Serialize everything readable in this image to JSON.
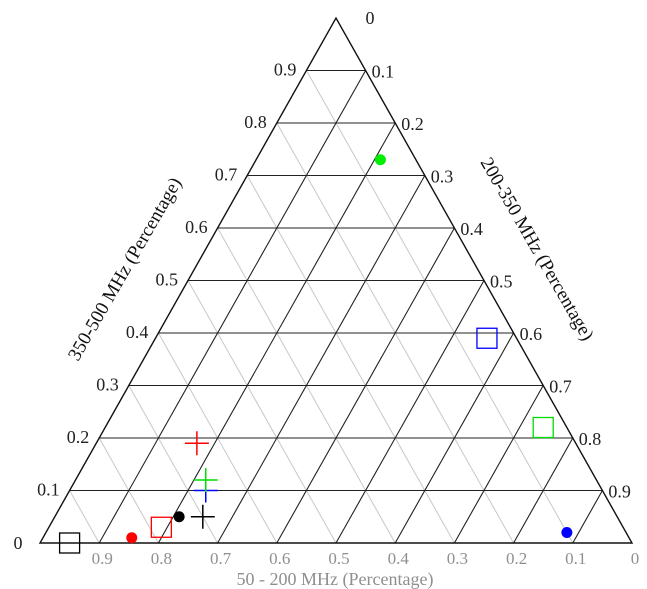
{
  "chart_data": {
    "type": "scatter",
    "subtype": "ternary",
    "axes": {
      "bottom": {
        "label": "50 - 200 MHz (Percentage)",
        "ticks": [
          "0.9",
          "0.8",
          "0.7",
          "0.6",
          "0.5",
          "0.4",
          "0.3",
          "0.2",
          "0.1",
          "0"
        ],
        "start_label": "0"
      },
      "left": {
        "label": "350-500 MHz (Percentage)",
        "ticks": [
          "0.1",
          "0.2",
          "0.3",
          "0.4",
          "0.5",
          "0.6",
          "0.7",
          "0.8",
          "0.9"
        ],
        "apex_label": "0"
      },
      "right": {
        "label": "200-350 MHz (Percentage)",
        "ticks": [
          "0.1",
          "0.2",
          "0.3",
          "0.4",
          "0.5",
          "0.6",
          "0.7",
          "0.8",
          "0.9"
        ]
      }
    },
    "grid": true,
    "points": [
      {
        "c350_500": 0.0,
        "c200_350": 0.05,
        "marker": "square",
        "color": "#000000"
      },
      {
        "c350_500": 0.01,
        "c200_350": 0.15,
        "marker": "circle",
        "color": "#ff0000"
      },
      {
        "c350_500": 0.03,
        "c200_350": 0.19,
        "marker": "square",
        "color": "#ff0000"
      },
      {
        "c350_500": 0.05,
        "c200_350": 0.21,
        "marker": "circle",
        "color": "#000000"
      },
      {
        "c350_500": 0.05,
        "c200_350": 0.25,
        "marker": "plus",
        "color": "#000000"
      },
      {
        "c350_500": 0.1,
        "c200_350": 0.23,
        "marker": "plus",
        "color": "#0000ff"
      },
      {
        "c350_500": 0.12,
        "c200_350": 0.22,
        "marker": "plus",
        "color": "#00dd00"
      },
      {
        "c350_500": 0.19,
        "c200_350": 0.17,
        "marker": "plus",
        "color": "#ff0000"
      },
      {
        "c350_500": 0.73,
        "c200_350": 0.21,
        "marker": "circle",
        "color": "#00ee00"
      },
      {
        "c350_500": 0.39,
        "c200_350": 0.56,
        "marker": "square",
        "color": "#0000ff"
      },
      {
        "c350_500": 0.22,
        "c200_350": 0.74,
        "marker": "square",
        "color": "#00dd00"
      },
      {
        "c350_500": 0.02,
        "c200_350": 0.88,
        "marker": "circle",
        "color": "#0000ff"
      }
    ]
  }
}
